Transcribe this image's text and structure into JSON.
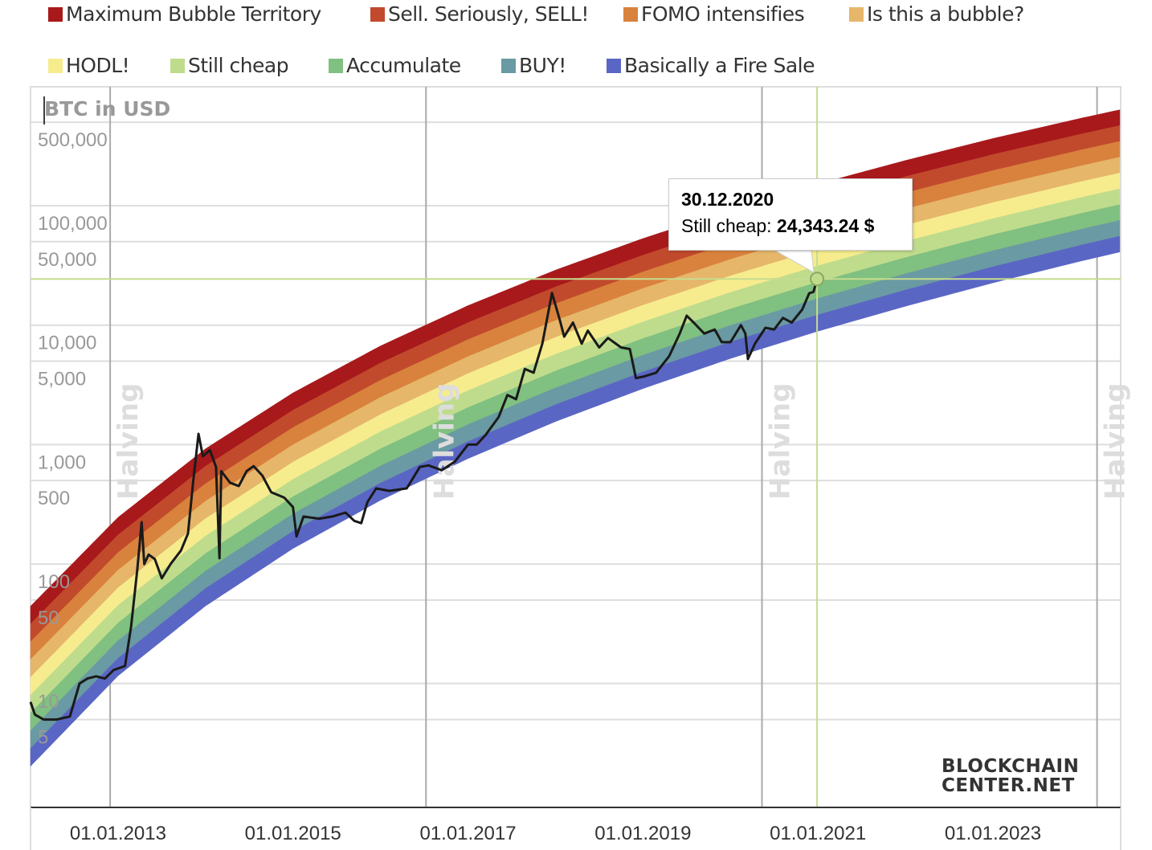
{
  "legend": [
    {
      "label": "Maximum Bubble Territory",
      "color": "#a8191b"
    },
    {
      "label": "Sell. Seriously, SELL!",
      "color": "#c14a2c"
    },
    {
      "label": "FOMO intensifies",
      "color": "#d9823d"
    },
    {
      "label": "Is this a bubble?",
      "color": "#e6b66a"
    },
    {
      "label": "HODL!",
      "color": "#f6ec8e"
    },
    {
      "label": "Still cheap",
      "color": "#bfdc8c"
    },
    {
      "label": "Accumulate",
      "color": "#80c080"
    },
    {
      "label": "BUY!",
      "color": "#6a9aa3"
    },
    {
      "label": "Basically a Fire Sale",
      "color": "#5a66c4"
    }
  ],
  "tooltip": {
    "date": "30.12.2020",
    "label": "Still cheap:",
    "value": "24,343.24 $"
  },
  "logo": {
    "line1": "BLOCKCHAIN",
    "line2": "CENTER.NET"
  },
  "chart_data": {
    "type": "area",
    "ylabel": "BTC in USD",
    "yscale": "log",
    "ylim": [
      0.91,
      990000
    ],
    "xlim": [
      2012.0,
      2024.46
    ],
    "grid": true,
    "legend_position": "top",
    "ytick_labels": [
      {
        "value": 500000,
        "label": "500,000"
      },
      {
        "value": 100000,
        "label": "100,000"
      },
      {
        "value": 50000,
        "label": "50,000"
      },
      {
        "value": 10000,
        "label": "10,000"
      },
      {
        "value": 5000,
        "label": "5,000"
      },
      {
        "value": 1000,
        "label": "1,000"
      },
      {
        "value": 500,
        "label": "500"
      },
      {
        "value": 100,
        "label": "100"
      },
      {
        "value": 50,
        "label": "50"
      },
      {
        "value": 10,
        "label": "10"
      },
      {
        "value": 5,
        "label": "5"
      }
    ],
    "xtick_labels": [
      {
        "value": 2013,
        "label": "01.01.2013"
      },
      {
        "value": 2015,
        "label": "01.01.2015"
      },
      {
        "value": 2017,
        "label": "01.01.2017"
      },
      {
        "value": 2019,
        "label": "01.01.2019"
      },
      {
        "value": 2021,
        "label": "01.01.2021"
      },
      {
        "value": 2023,
        "label": "01.01.2023"
      }
    ],
    "halvings": [
      {
        "x": 2012.91,
        "label": "Halving"
      },
      {
        "x": 2016.52,
        "label": "Halving"
      },
      {
        "x": 2020.36,
        "label": "Halving"
      },
      {
        "x": 2024.19,
        "label": "Halving"
      }
    ],
    "rainbow_bottom": [
      [
        2012,
        2.03
      ],
      [
        2013,
        11.6
      ],
      [
        2014,
        44.6
      ],
      [
        2015,
        135
      ],
      [
        2016,
        342
      ],
      [
        2017,
        764
      ],
      [
        2018,
        1560
      ],
      [
        2019,
        2944
      ],
      [
        2020,
        5260
      ],
      [
        2021,
        8900
      ],
      [
        2022,
        14400
      ],
      [
        2023,
        22600
      ],
      [
        2024,
        34300
      ],
      [
        2024.46,
        41100
      ]
    ],
    "rainbow_top": [
      [
        2012,
        44.4
      ],
      [
        2013,
        246
      ],
      [
        2014,
        923
      ],
      [
        2015,
        2710
      ],
      [
        2016,
        6700
      ],
      [
        2017,
        14560
      ],
      [
        2018,
        28900
      ],
      [
        2019,
        53100
      ],
      [
        2020,
        92300
      ],
      [
        2021,
        151700
      ],
      [
        2022,
        239000
      ],
      [
        2023,
        365000
      ],
      [
        2024,
        538000
      ],
      [
        2024.46,
        637000
      ]
    ],
    "btc_price": [
      [
        2012.0,
        7
      ],
      [
        2012.05,
        5.5
      ],
      [
        2012.15,
        5
      ],
      [
        2012.3,
        5
      ],
      [
        2012.45,
        5.3
      ],
      [
        2012.56,
        10
      ],
      [
        2012.65,
        11
      ],
      [
        2012.75,
        11.5
      ],
      [
        2012.85,
        11
      ],
      [
        2012.95,
        13
      ],
      [
        2013.08,
        14
      ],
      [
        2013.15,
        30
      ],
      [
        2013.22,
        90
      ],
      [
        2013.27,
        224
      ],
      [
        2013.3,
        100
      ],
      [
        2013.35,
        120
      ],
      [
        2013.42,
        110
      ],
      [
        2013.5,
        76
      ],
      [
        2013.6,
        100
      ],
      [
        2013.72,
        130
      ],
      [
        2013.8,
        180
      ],
      [
        2013.86,
        500
      ],
      [
        2013.92,
        1230
      ],
      [
        2013.97,
        800
      ],
      [
        2014.05,
        900
      ],
      [
        2014.12,
        650
      ],
      [
        2014.16,
        112
      ],
      [
        2014.18,
        600
      ],
      [
        2014.28,
        480
      ],
      [
        2014.38,
        450
      ],
      [
        2014.47,
        600
      ],
      [
        2014.55,
        660
      ],
      [
        2014.65,
        550
      ],
      [
        2014.75,
        400
      ],
      [
        2014.9,
        360
      ],
      [
        2015.0,
        300
      ],
      [
        2015.04,
        170
      ],
      [
        2015.12,
        250
      ],
      [
        2015.3,
        240
      ],
      [
        2015.45,
        250
      ],
      [
        2015.6,
        270
      ],
      [
        2015.7,
        230
      ],
      [
        2015.78,
        220
      ],
      [
        2015.85,
        330
      ],
      [
        2015.95,
        430
      ],
      [
        2016.1,
        410
      ],
      [
        2016.3,
        430
      ],
      [
        2016.45,
        650
      ],
      [
        2016.55,
        670
      ],
      [
        2016.7,
        610
      ],
      [
        2016.85,
        720
      ],
      [
        2017.0,
        1000
      ],
      [
        2017.1,
        1000
      ],
      [
        2017.2,
        1200
      ],
      [
        2017.35,
        1700
      ],
      [
        2017.45,
        2600
      ],
      [
        2017.55,
        2400
      ],
      [
        2017.65,
        4300
      ],
      [
        2017.75,
        4000
      ],
      [
        2017.85,
        7000
      ],
      [
        2017.96,
        18600
      ],
      [
        2018.05,
        11000
      ],
      [
        2018.1,
        8000
      ],
      [
        2018.2,
        10500
      ],
      [
        2018.3,
        7000
      ],
      [
        2018.37,
        9000
      ],
      [
        2018.5,
        6500
      ],
      [
        2018.6,
        7800
      ],
      [
        2018.75,
        6500
      ],
      [
        2018.85,
        6300
      ],
      [
        2018.92,
        3600
      ],
      [
        2019.0,
        3700
      ],
      [
        2019.15,
        4000
      ],
      [
        2019.3,
        5500
      ],
      [
        2019.42,
        8500
      ],
      [
        2019.5,
        12000
      ],
      [
        2019.58,
        10500
      ],
      [
        2019.7,
        8500
      ],
      [
        2019.82,
        9200
      ],
      [
        2019.9,
        7200
      ],
      [
        2020.0,
        7200
      ],
      [
        2020.12,
        10000
      ],
      [
        2020.17,
        8500
      ],
      [
        2020.2,
        5200
      ],
      [
        2020.28,
        7000
      ],
      [
        2020.4,
        9500
      ],
      [
        2020.5,
        9200
      ],
      [
        2020.6,
        11500
      ],
      [
        2020.7,
        10500
      ],
      [
        2020.82,
        13500
      ],
      [
        2020.9,
        18500
      ],
      [
        2020.95,
        19000
      ],
      [
        2020.99,
        24343.24
      ]
    ],
    "highlight": {
      "x": 2020.99,
      "y": 24343.24,
      "band": "Still cheap"
    }
  }
}
